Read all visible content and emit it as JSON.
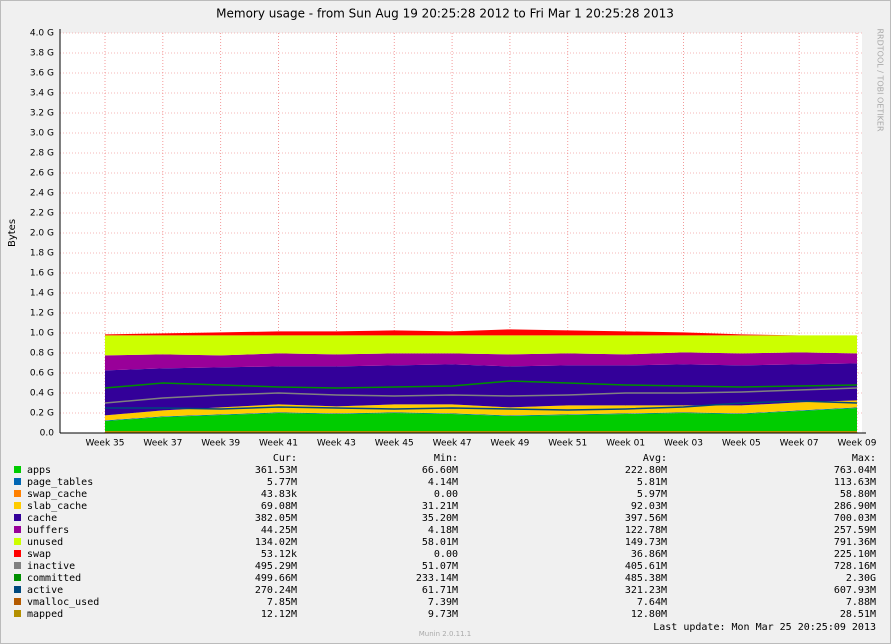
{
  "chart_data": {
    "type": "stacked_area",
    "title": "Memory usage - from Sun Aug 19 20:25:28 2012 to Fri Mar  1 20:25:28 2013",
    "y_label": "Bytes",
    "side_text": "RRDTOOL / TOBI OETIKER",
    "footer": "Munin 2.0.11.1",
    "last_update": "Last update: Mon Mar 25 20:25:09 2013",
    "grid": true,
    "categories": [
      "Week 35",
      "Week 37",
      "Week 39",
      "Week 41",
      "Week 43",
      "Week 45",
      "Week 47",
      "Week 49",
      "Week 51",
      "Week 01",
      "Week 03",
      "Week 05",
      "Week 07",
      "Week 09"
    ],
    "ylim": [
      0,
      4.0
    ],
    "yticks": [
      {
        "value": 0,
        "label": "0.0"
      },
      {
        "value": 0.2,
        "label": "0.2 G"
      },
      {
        "value": 0.4,
        "label": "0.4 G"
      },
      {
        "value": 0.6,
        "label": "0.6 G"
      },
      {
        "value": 0.8,
        "label": "0.8 G"
      },
      {
        "value": 1.0,
        "label": "1.0 G"
      },
      {
        "value": 1.2,
        "label": "1.2 G"
      },
      {
        "value": 1.4,
        "label": "1.4 G"
      },
      {
        "value": 1.6,
        "label": "1.6 G"
      },
      {
        "value": 1.8,
        "label": "1.8 G"
      },
      {
        "value": 2.0,
        "label": "2.0 G"
      },
      {
        "value": 2.2,
        "label": "2.2 G"
      },
      {
        "value": 2.4,
        "label": "2.4 G"
      },
      {
        "value": 2.6,
        "label": "2.6 G"
      },
      {
        "value": 2.8,
        "label": "2.8 G"
      },
      {
        "value": 3.0,
        "label": "3.0 G"
      },
      {
        "value": 3.2,
        "label": "3.2 G"
      },
      {
        "value": 3.4,
        "label": "3.4 G"
      },
      {
        "value": 3.6,
        "label": "3.6 G"
      },
      {
        "value": 3.8,
        "label": "3.8 G"
      },
      {
        "value": 4.0,
        "label": "4.0 G"
      }
    ],
    "series": [
      {
        "name": "apps",
        "color": "#00cc00",
        "stack": true,
        "values": [
          0.12,
          0.16,
          0.18,
          0.2,
          0.19,
          0.2,
          0.19,
          0.17,
          0.18,
          0.19,
          0.2,
          0.19,
          0.22,
          0.25
        ]
      },
      {
        "name": "page_tables",
        "color": "#0066b3",
        "stack": true,
        "values": [
          0.006,
          0.006,
          0.006,
          0.006,
          0.006,
          0.006,
          0.006,
          0.006,
          0.006,
          0.006,
          0.006,
          0.006,
          0.006,
          0.006
        ]
      },
      {
        "name": "swap_cache",
        "color": "#ff8000",
        "stack": true,
        "values": [
          0,
          0,
          0,
          0,
          0,
          0,
          0,
          0,
          0,
          0,
          0,
          0,
          0,
          0
        ]
      },
      {
        "name": "slab_cache",
        "color": "#ffcc00",
        "stack": true,
        "values": [
          0.05,
          0.06,
          0.07,
          0.08,
          0.07,
          0.08,
          0.09,
          0.08,
          0.09,
          0.08,
          0.07,
          0.08,
          0.08,
          0.07
        ]
      },
      {
        "name": "cache",
        "color": "#330099",
        "stack": true,
        "values": [
          0.45,
          0.42,
          0.4,
          0.38,
          0.4,
          0.39,
          0.4,
          0.41,
          0.4,
          0.4,
          0.41,
          0.4,
          0.38,
          0.37
        ]
      },
      {
        "name": "buffers",
        "color": "#990099",
        "stack": true,
        "values": [
          0.15,
          0.14,
          0.12,
          0.13,
          0.12,
          0.12,
          0.11,
          0.12,
          0.12,
          0.11,
          0.12,
          0.12,
          0.12,
          0.1
        ]
      },
      {
        "name": "unused",
        "color": "#ccff00",
        "stack": true,
        "values": [
          0.2,
          0.19,
          0.2,
          0.18,
          0.19,
          0.18,
          0.18,
          0.19,
          0.18,
          0.19,
          0.17,
          0.18,
          0.17,
          0.18
        ]
      },
      {
        "name": "swap",
        "color": "#ff0000",
        "stack": true,
        "values": [
          0.01,
          0.02,
          0.03,
          0.04,
          0.04,
          0.05,
          0.04,
          0.06,
          0.05,
          0.04,
          0.03,
          0.01,
          0,
          0
        ]
      },
      {
        "name": "inactive",
        "color": "#808080",
        "stack": false,
        "values": [
          0.3,
          0.35,
          0.38,
          0.4,
          0.38,
          0.37,
          0.38,
          0.37,
          0.38,
          0.4,
          0.4,
          0.41,
          0.43,
          0.45
        ]
      },
      {
        "name": "committed",
        "color": "#008f00",
        "stack": false,
        "values": [
          0.45,
          0.5,
          0.48,
          0.46,
          0.45,
          0.46,
          0.47,
          0.52,
          0.5,
          0.48,
          0.47,
          0.46,
          0.47,
          0.48
        ]
      },
      {
        "name": "active",
        "color": "#00487d",
        "stack": false,
        "values": [
          0.25,
          0.25,
          0.24,
          0.26,
          0.25,
          0.24,
          0.25,
          0.24,
          0.23,
          0.24,
          0.26,
          0.3,
          0.32,
          0.3
        ]
      },
      {
        "name": "vmalloc_used",
        "color": "#b35a00",
        "stack": false,
        "values": [
          0.008,
          0.008,
          0.008,
          0.008,
          0.008,
          0.008,
          0.008,
          0.008,
          0.008,
          0.008,
          0.008,
          0.008,
          0.008,
          0.008
        ]
      },
      {
        "name": "mapped",
        "color": "#b38f00",
        "stack": false,
        "values": [
          0.012,
          0.012,
          0.012,
          0.012,
          0.012,
          0.012,
          0.012,
          0.012,
          0.012,
          0.012,
          0.012,
          0.012,
          0.012,
          0.012
        ]
      }
    ],
    "table": {
      "columns": [
        "Cur:",
        "Min:",
        "Avg:",
        "Max:"
      ],
      "rows": [
        [
          "361.53M",
          "66.60M",
          "222.80M",
          "763.04M"
        ],
        [
          "5.77M",
          "4.14M",
          "5.81M",
          "113.63M"
        ],
        [
          "43.83k",
          "0.00",
          "5.97M",
          "58.80M"
        ],
        [
          "69.08M",
          "31.21M",
          "92.03M",
          "286.90M"
        ],
        [
          "382.05M",
          "35.20M",
          "397.56M",
          "700.03M"
        ],
        [
          "44.25M",
          "4.18M",
          "122.78M",
          "257.59M"
        ],
        [
          "134.02M",
          "58.01M",
          "149.73M",
          "791.36M"
        ],
        [
          "53.12k",
          "0.00",
          "36.86M",
          "225.10M"
        ],
        [
          "495.29M",
          "51.07M",
          "405.61M",
          "728.16M"
        ],
        [
          "499.66M",
          "233.14M",
          "485.38M",
          "2.30G"
        ],
        [
          "270.24M",
          "61.71M",
          "321.23M",
          "607.93M"
        ],
        [
          "7.85M",
          "7.39M",
          "7.64M",
          "7.88M"
        ],
        [
          "12.12M",
          "9.73M",
          "12.80M",
          "28.51M"
        ]
      ]
    }
  }
}
